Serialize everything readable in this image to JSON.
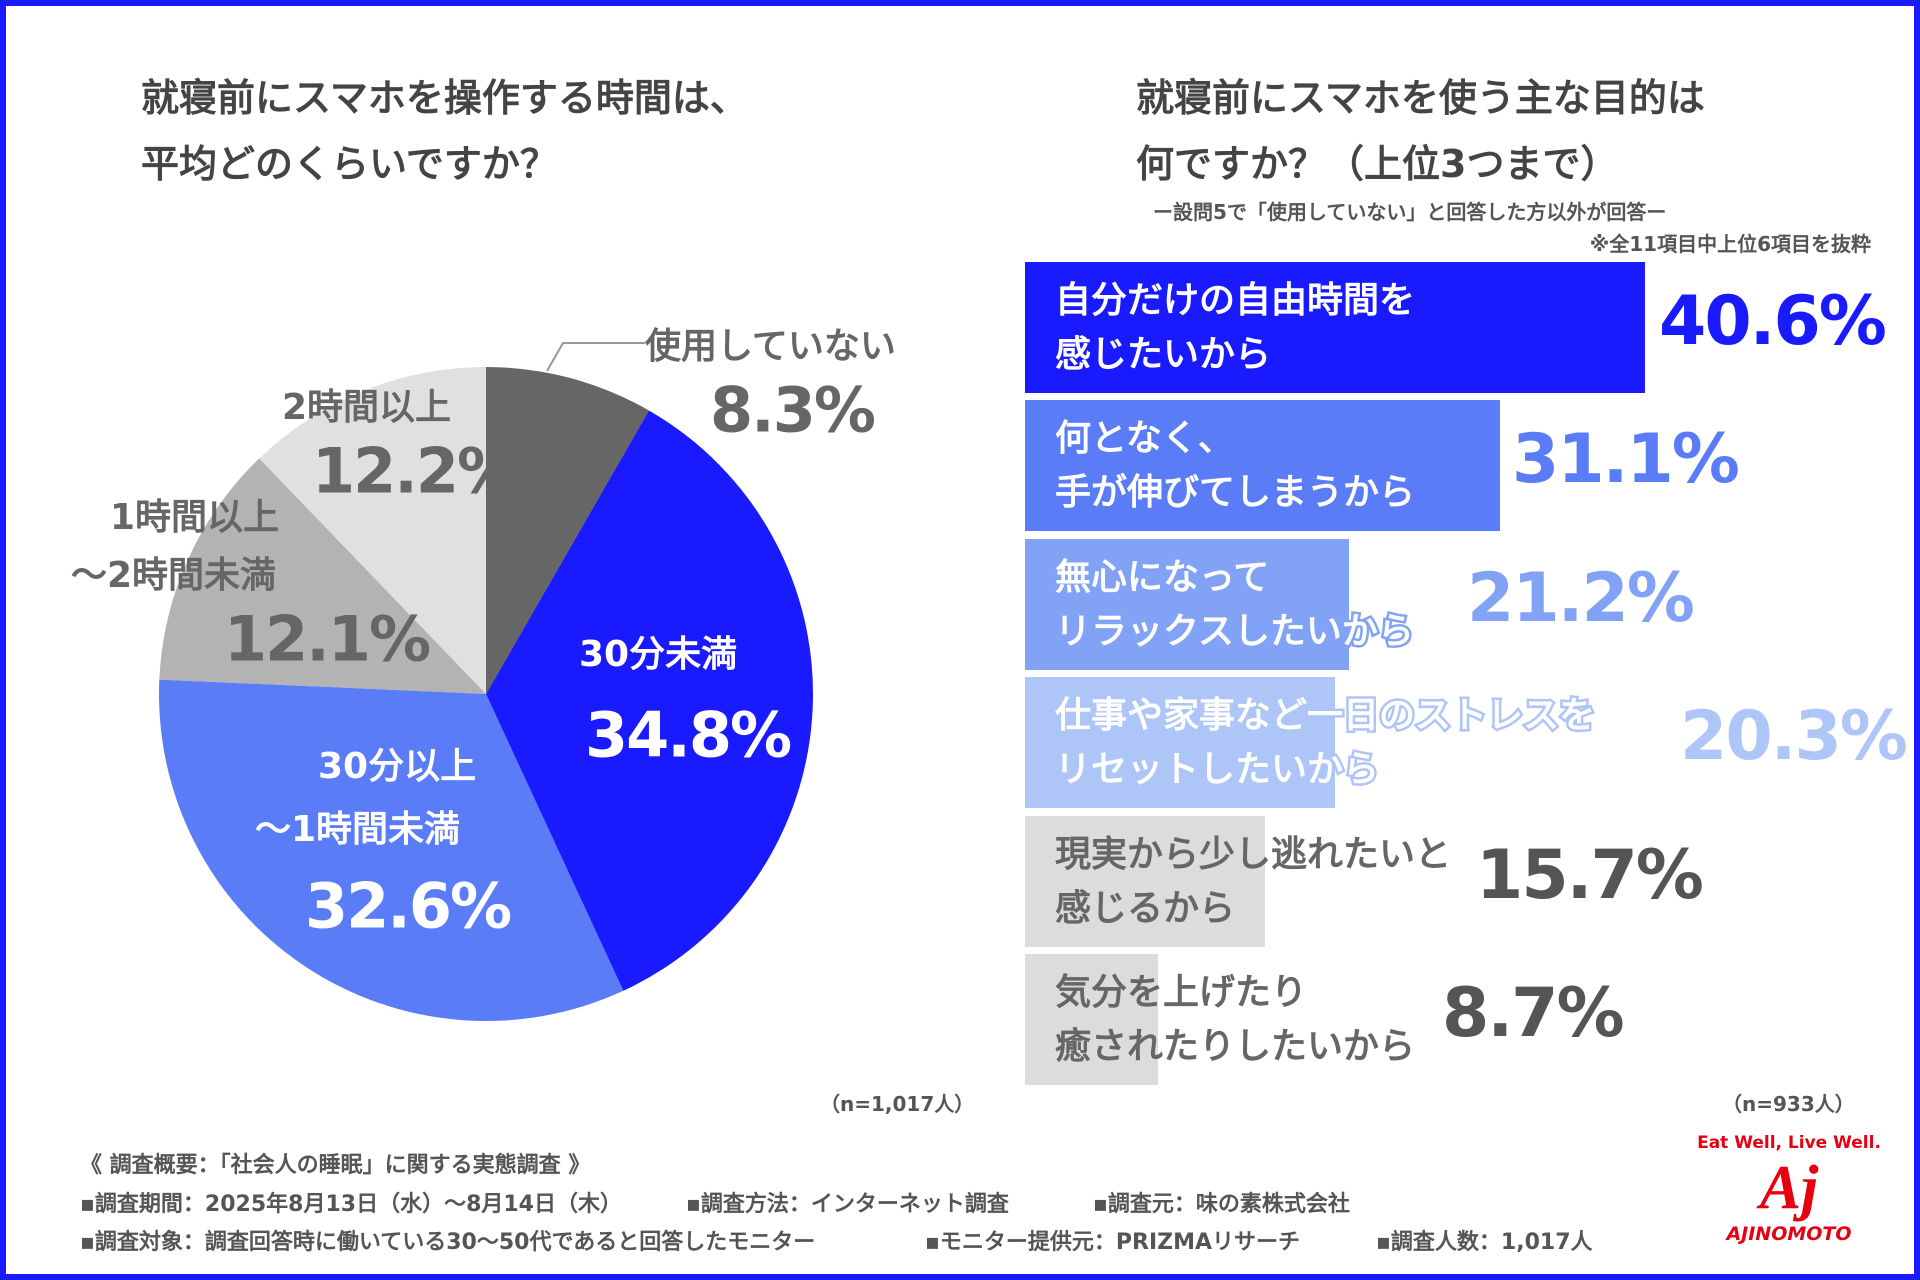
{
  "left_title": [
    "就寝前にスマホを操作する時間は、",
    "平均どのくらいですか？"
  ],
  "right_title": [
    "就寝前にスマホを使う主な目的は",
    "何ですか？（上位3つまで）"
  ],
  "right_subtitle": "ー設問5で「使用していない」と回答した方以外が回答ー",
  "right_note": "※全11項目中上位6項目を抜粋",
  "chart_data": [
    {
      "type": "pie",
      "start": "top",
      "direction": "clockwise",
      "slices": [
        {
          "label": [
            "使用していない"
          ],
          "value": 8.3,
          "display": "8.3%",
          "color": "#666666"
        },
        {
          "label": [
            "30分未満"
          ],
          "value": 34.8,
          "display": "34.8%",
          "color": "#1a1aff"
        },
        {
          "label": [
            "30分以上",
            "～1時間未満"
          ],
          "value": 32.6,
          "display": "32.6%",
          "color": "#5b7cf7"
        },
        {
          "label": [
            "1時間以上",
            "～2時間未満"
          ],
          "value": 12.1,
          "display": "12.1%",
          "color": "#b3b3b3"
        },
        {
          "label": [
            "2時間以上"
          ],
          "value": 12.2,
          "display": "12.2%",
          "color": "#e0e0e0"
        }
      ],
      "n": "（n=1,017人）"
    },
    {
      "type": "bar",
      "orientation": "horizontal",
      "xlim": [
        0,
        40.6
      ],
      "bars": [
        {
          "label": [
            "自分だけの自由時間を",
            "感じたいから"
          ],
          "value": 40.6,
          "display": "40.6%",
          "color": "#1a1aff"
        },
        {
          "label": [
            "何となく、",
            "手が伸びてしまうから"
          ],
          "value": 31.1,
          "display": "31.1%",
          "color": "#5b7cf7"
        },
        {
          "label": [
            "無心になって",
            "リラックスしたいから"
          ],
          "value": 21.2,
          "display": "21.2%",
          "color": "#82a2f5"
        },
        {
          "label": [
            "仕事や家事など一日のストレスを",
            "リセットしたいから"
          ],
          "value": 20.3,
          "display": "20.3%",
          "color": "#aec5f7"
        },
        {
          "label": [
            "現実から少し逃れたいと",
            "感じるから"
          ],
          "value": 15.7,
          "display": "15.7%",
          "color": "#dcdcdc"
        },
        {
          "label": [
            "気分を上げたり",
            "癒されたりしたいから"
          ],
          "value": 8.7,
          "display": "8.7%",
          "color": "#dcdcdc"
        }
      ],
      "n": "（n=933人）"
    }
  ],
  "footer": {
    "heading": "《 調査概要：「社会人の睡眠」に関する実態調査 》",
    "items": [
      "▪調査期間：2025年8月13日（水）～8月14日（木）",
      "▪調査方法：インターネット調査",
      "▪調査元：味の素株式会社",
      "▪調査対象：調査回答時に働いている30～50代であると回答したモニター",
      "▪モニター提供元：PRIZMAリサーチ",
      "▪調査人数：1,017人"
    ]
  },
  "logo": {
    "tagline": "Eat Well, Live Well.",
    "mark": "Aj",
    "name": "AJINOMOTO",
    "color": "#e60012"
  }
}
